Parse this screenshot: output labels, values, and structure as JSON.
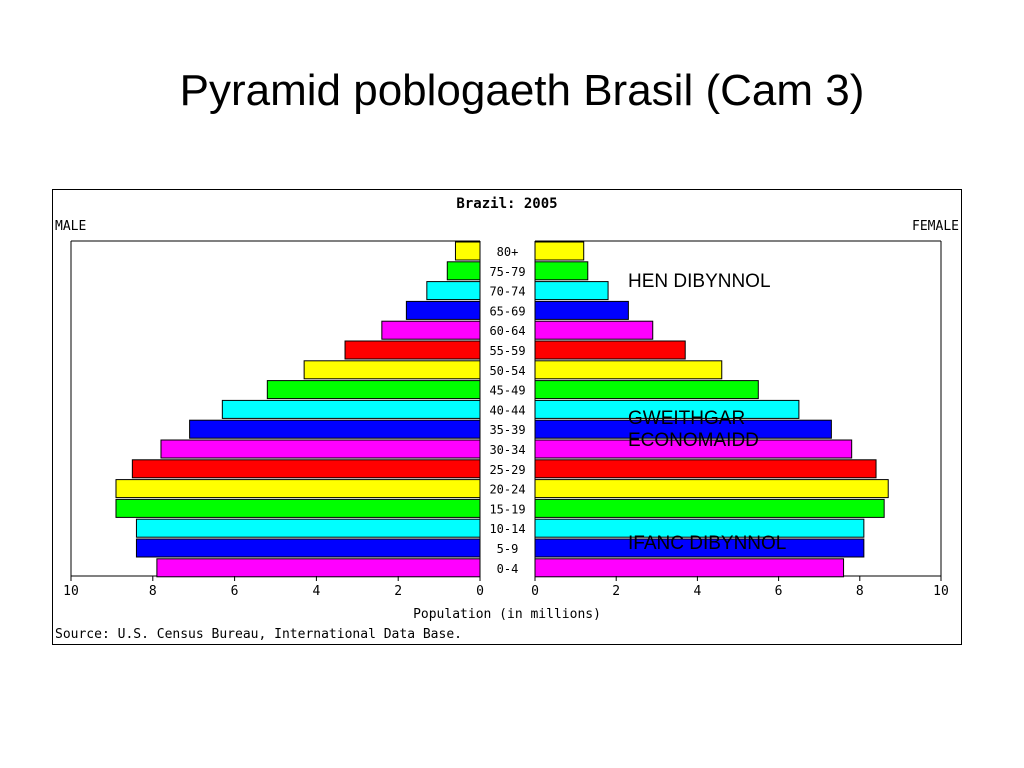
{
  "slide": {
    "title": "Pyramid poblogaeth Brasil (Cam 3)"
  },
  "chart_data": {
    "type": "bar",
    "orientation": "horizontal-pyramid",
    "title": "Brazil: 2005",
    "left_label": "MALE",
    "right_label": "FEMALE",
    "xlabel": "Population (in millions)",
    "source": "Source: U.S. Census Bureau, International Data Base.",
    "xlim": [
      0,
      10
    ],
    "x_ticks": [
      "0",
      "2",
      "4",
      "6",
      "8",
      "10"
    ],
    "categories": [
      "80+",
      "75-79",
      "70-74",
      "65-69",
      "60-64",
      "55-59",
      "50-54",
      "45-49",
      "40-44",
      "35-39",
      "30-34",
      "25-29",
      "20-24",
      "15-19",
      "10-14",
      "5-9",
      "0-4"
    ],
    "series": [
      {
        "name": "MALE",
        "values": [
          0.6,
          0.8,
          1.3,
          1.8,
          2.4,
          3.3,
          4.3,
          5.2,
          6.3,
          7.1,
          7.8,
          8.5,
          8.9,
          8.9,
          8.4,
          8.4,
          7.9
        ]
      },
      {
        "name": "FEMALE",
        "values": [
          1.2,
          1.3,
          1.8,
          2.3,
          2.9,
          3.7,
          4.6,
          5.5,
          6.5,
          7.3,
          7.8,
          8.4,
          8.7,
          8.6,
          8.1,
          8.1,
          7.6
        ]
      }
    ],
    "bar_colors": [
      "#ffff00",
      "#00ff00",
      "#00ffff",
      "#0000ff",
      "#ff00ff",
      "#ff0000",
      "#ffff00",
      "#00ff00",
      "#00ffff",
      "#0000ff",
      "#ff00ff",
      "#ff0000",
      "#ffff00",
      "#00ff00",
      "#00ffff",
      "#0000ff",
      "#ff00ff"
    ],
    "grid": false,
    "annotations": {
      "old_dependent": "HEN DIBYNNOL",
      "workers": "GWEITHGAR\nECONOMAIDD",
      "young_dependent": "IFANC DIBYNNOL"
    }
  }
}
